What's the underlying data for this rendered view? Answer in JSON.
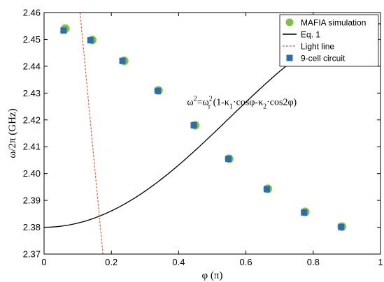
{
  "chart_data": {
    "type": "scatter",
    "title": "",
    "xlabel": "φ (π)",
    "ylabel": "ω/2π (GHz)",
    "xlim": [
      0,
      1
    ],
    "ylim": [
      2.37,
      2.46
    ],
    "x_ticks": [
      "0",
      "0.2",
      "0.4",
      "0.6",
      "0.8",
      "1"
    ],
    "y_ticks": [
      "2.37",
      "2.38",
      "2.39",
      "2.40",
      "2.41",
      "2.42",
      "2.43",
      "2.44",
      "2.45",
      "2.46"
    ],
    "grid": false,
    "legend_position": "top-right",
    "series": [
      {
        "name": "MAFIA simulation",
        "kind": "scatter-circle",
        "color": "#7dc242",
        "x": [
          0.063,
          0.143,
          0.238,
          0.34,
          0.449,
          0.55,
          0.665,
          0.776,
          0.885
        ],
        "y": [
          2.454,
          2.4498,
          2.442,
          2.431,
          2.418,
          2.4055,
          2.3943,
          2.3857,
          2.3802
        ]
      },
      {
        "name": "Eq. 1",
        "kind": "line",
        "color": "#000000",
        "model": {
          "fr": 2.4164,
          "k1": 0.0314,
          "k2": -0.0015
        }
      },
      {
        "name": "Light line",
        "kind": "dashed-line",
        "color": "#e8632b",
        "x": [
          0.107,
          0.175
        ],
        "y": [
          2.46,
          2.37
        ]
      },
      {
        "name": "9-cell circuit",
        "kind": "scatter-square",
        "color": "#2b6cb5",
        "x": [
          0.058,
          0.138,
          0.233,
          0.338,
          0.445,
          0.548,
          0.662,
          0.773,
          0.883
        ],
        "y": [
          2.4533,
          2.4497,
          2.442,
          2.4308,
          2.418,
          2.4055,
          2.3942,
          2.3855,
          2.3801
        ]
      }
    ],
    "annotation": {
      "parts": [
        {
          "t": "ω",
          "s": ""
        },
        {
          "t": "2",
          "s": "sup"
        },
        {
          "t": "=ω",
          "s": ""
        },
        {
          "t": "2",
          "s": "sup"
        },
        {
          "t": "r",
          "s": "sub"
        },
        {
          "t": " (1-κ",
          "s": ""
        },
        {
          "t": "1",
          "s": "sub"
        },
        {
          "t": "·cosφ-κ",
          "s": ""
        },
        {
          "t": "2",
          "s": "sub"
        },
        {
          "t": "·cos2φ)",
          "s": ""
        }
      ],
      "at": [
        0.425,
        2.4255
      ]
    }
  }
}
